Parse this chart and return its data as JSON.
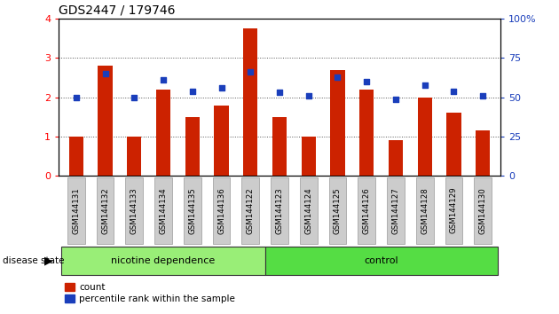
{
  "title": "GDS2447 / 179746",
  "categories": [
    "GSM144131",
    "GSM144132",
    "GSM144133",
    "GSM144134",
    "GSM144135",
    "GSM144136",
    "GSM144122",
    "GSM144123",
    "GSM144124",
    "GSM144125",
    "GSM144126",
    "GSM144127",
    "GSM144128",
    "GSM144129",
    "GSM144130"
  ],
  "bar_values": [
    1.0,
    2.8,
    1.0,
    2.2,
    1.5,
    1.8,
    3.75,
    1.5,
    1.0,
    2.7,
    2.2,
    0.9,
    2.0,
    1.6,
    1.15
  ],
  "percentile_values": [
    50,
    65,
    50,
    61,
    54,
    56,
    66,
    53,
    51,
    63,
    60,
    49,
    58,
    54,
    51
  ],
  "bar_color": "#cc2200",
  "percentile_color": "#1a3ebb",
  "nicotine_indices": [
    0,
    1,
    2,
    3,
    4,
    5,
    6
  ],
  "control_indices": [
    7,
    8,
    9,
    10,
    11,
    12,
    13,
    14
  ],
  "nicotine_color": "#99ee77",
  "control_color": "#55dd44",
  "group_label_nicotine": "nicotine dependence",
  "group_label_control": "control",
  "disease_state_label": "disease state",
  "left_ylim": [
    0,
    4
  ],
  "left_yticks": [
    0,
    1,
    2,
    3,
    4
  ],
  "right_ylim": [
    0,
    100
  ],
  "right_yticks": [
    0,
    25,
    50,
    75,
    100
  ],
  "right_yticklabels": [
    "0",
    "25",
    "50",
    "75",
    "100%"
  ],
  "legend_count_label": "count",
  "legend_percentile_label": "percentile rank within the sample",
  "bar_width": 0.5,
  "tick_label_bg": "#cccccc",
  "tick_label_border": "#999999"
}
